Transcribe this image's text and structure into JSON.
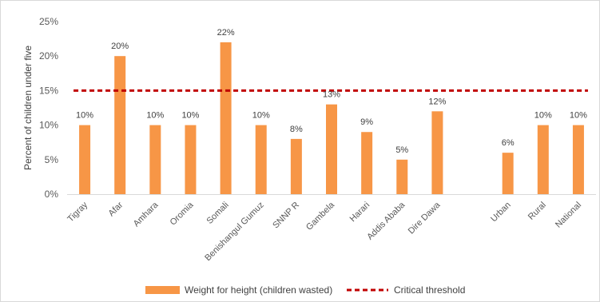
{
  "chart_data": {
    "type": "bar",
    "ylabel": "Percent of children under five",
    "xlabel": "",
    "title": "",
    "ylim": [
      0,
      25
    ],
    "yticks": [
      0,
      5,
      10,
      15,
      20,
      25
    ],
    "ytick_format": "percent",
    "grid": false,
    "legend_position": "bottom",
    "categories": [
      "Tigray",
      "Afar",
      "Amhara",
      "Oromia",
      "Somali",
      "Benishangul Gumuz",
      "SNNP R",
      "Gambela",
      "Harari",
      "Addis Ababa",
      "Dire Dawa",
      "",
      "Urban",
      "Rural",
      "National"
    ],
    "series": [
      {
        "name": "Weight for height (children wasted)",
        "type": "bar",
        "color": "#f79646",
        "values": [
          10,
          20,
          10,
          10,
          22,
          10,
          8,
          13,
          9,
          5,
          12,
          null,
          6,
          10,
          10
        ],
        "data_labels": [
          "10%",
          "20%",
          "10%",
          "10%",
          "22%",
          "10%",
          "8%",
          "13%",
          "9%",
          "5%",
          "12%",
          "",
          "6%",
          "10%",
          "10%"
        ]
      },
      {
        "name": "Critical threshold",
        "type": "line",
        "style": "dashed",
        "color": "#c00000",
        "value": 15
      }
    ]
  }
}
